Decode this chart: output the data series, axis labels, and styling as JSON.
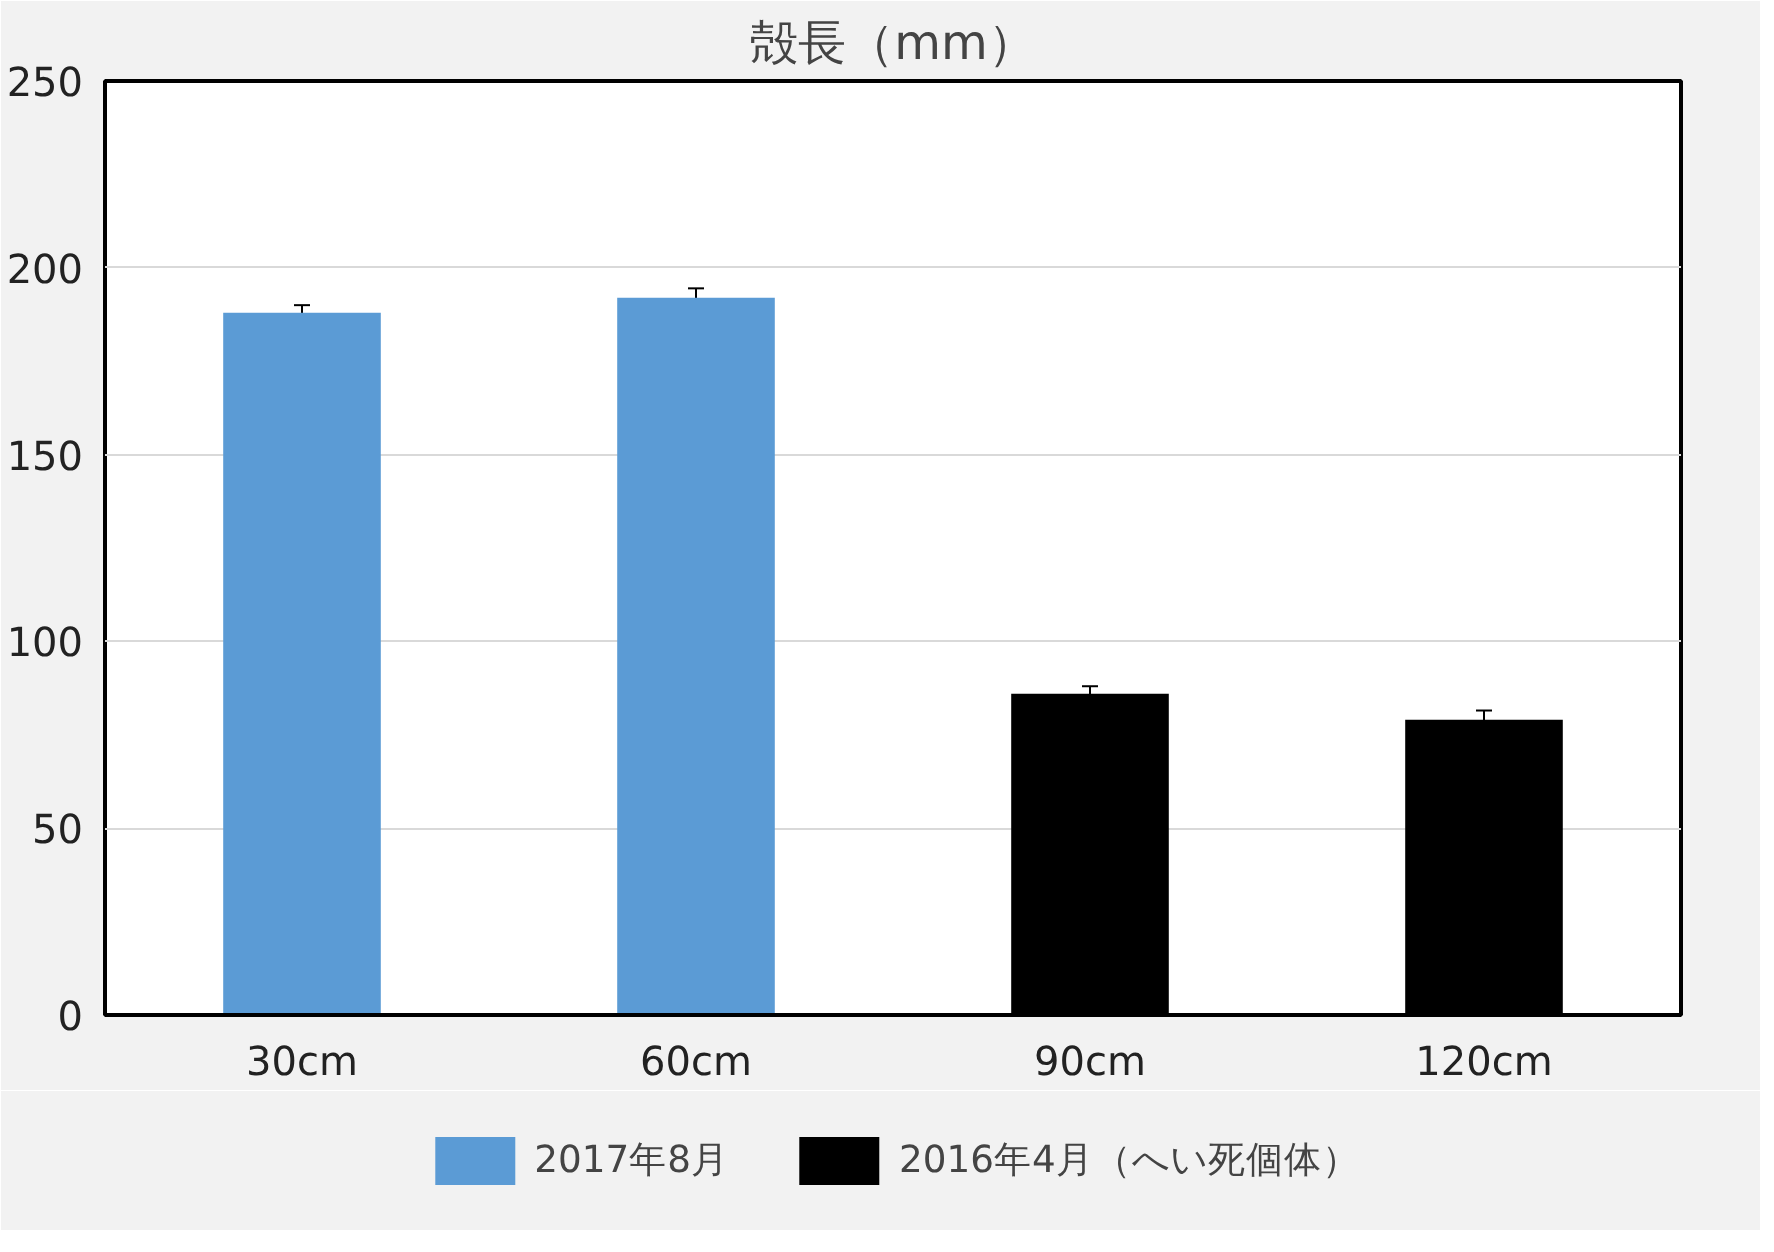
{
  "chart_data": {
    "type": "bar",
    "title": "殻長（mm）",
    "categories": [
      "30cm",
      "60cm",
      "90cm",
      "120cm"
    ],
    "series": [
      {
        "name": "2017年8月",
        "color": "#5b9bd5",
        "values": [
          188,
          192,
          null,
          null
        ],
        "errors": [
          2,
          2.5,
          null,
          null
        ]
      },
      {
        "name": "2016年4月（へい死個体）",
        "color": "#000000",
        "values": [
          null,
          null,
          86,
          79
        ],
        "errors": [
          null,
          null,
          2,
          2.5
        ]
      }
    ],
    "ylim": [
      0,
      250
    ],
    "yticks": [
      0,
      50,
      100,
      150,
      200,
      250
    ],
    "grid": "y",
    "legend": "bottom"
  }
}
